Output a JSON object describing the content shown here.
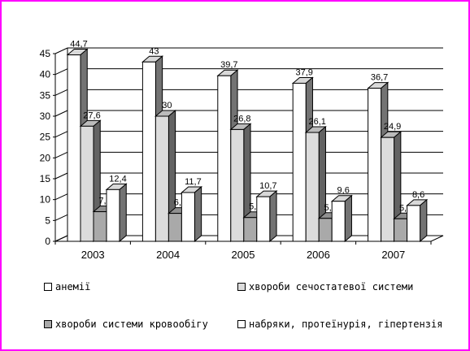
{
  "chart_data": {
    "type": "bar",
    "categories": [
      "2003",
      "2004",
      "2005",
      "2006",
      "2007"
    ],
    "series": [
      {
        "name": "анемії",
        "values": [
          44.7,
          43,
          39.7,
          37.9,
          36.7
        ],
        "value_labels": [
          "44,7",
          "43",
          "39,7",
          "37,9",
          "36,7"
        ],
        "color": "#ffffff"
      },
      {
        "name": "хвороби сечостатевої системи",
        "values": [
          27.6,
          30,
          26.8,
          26.1,
          24.9
        ],
        "value_labels": [
          "27,6",
          "30",
          "26,8",
          "26,1",
          "24,9"
        ],
        "color": "#dcdcdc"
      },
      {
        "name": "хвороби системи кровообігу",
        "values": [
          7.1,
          6.7,
          5.7,
          5.5,
          5.4
        ],
        "value_labels": [
          "7,1",
          "6,7",
          "5,7",
          "5,5",
          "5,4"
        ],
        "color": "#a9a9a9"
      },
      {
        "name": "набряки, протеїнурія, гіпертензія",
        "values": [
          12.4,
          11.7,
          10.7,
          9.6,
          8.6
        ],
        "value_labels": [
          "12,4",
          "11,7",
          "10,7",
          "9,6",
          "8,6"
        ],
        "color": "#ffffff"
      }
    ],
    "y_ticks": [
      "0",
      "5",
      "10",
      "15",
      "20",
      "25",
      "30",
      "35",
      "40",
      "45"
    ],
    "ylim": [
      0,
      45
    ],
    "grid": true,
    "legend_position": "bottom",
    "title": "",
    "xlabel": "",
    "ylabel": ""
  },
  "frame_color": "#ff00ff"
}
